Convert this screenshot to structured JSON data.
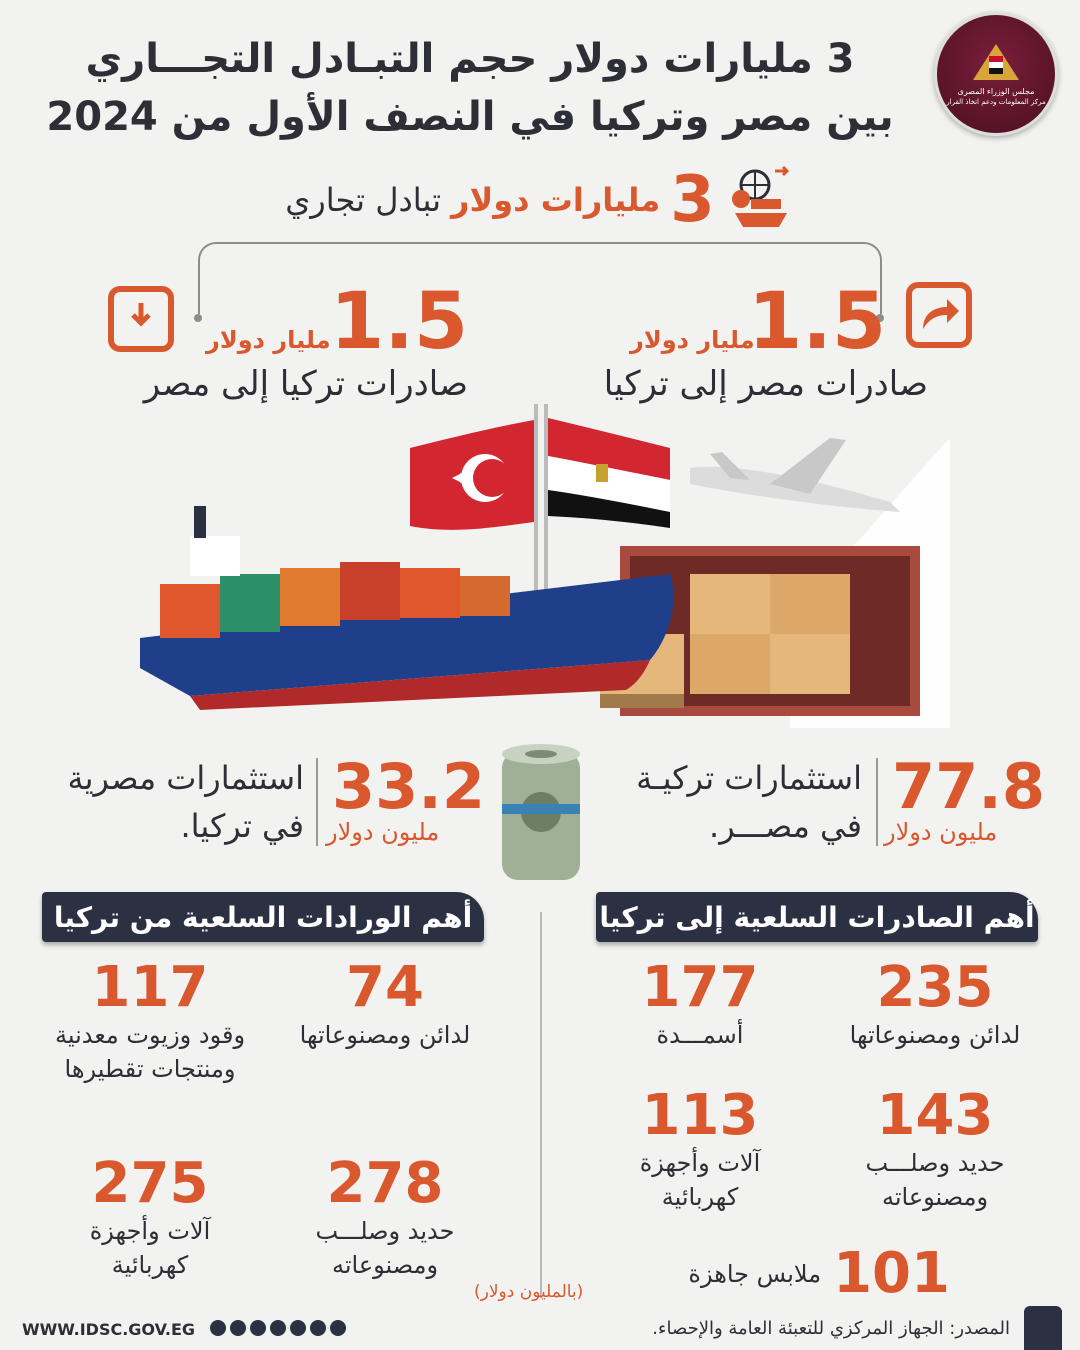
{
  "title": {
    "line1": "3 مليارات دولار حجم التبـادل التجـــاري",
    "line2": "بين مصر وتركيا في النصف الأول من 2024"
  },
  "logo": {
    "line1": "مجلس الوزراء المصرى",
    "line2": "مركز المعلومات ودعم اتخاذ القرار"
  },
  "trade": {
    "value": "3",
    "unit": "مليارات دولار",
    "label": "تبادل تجاري"
  },
  "egypt_exports": {
    "value": "1.5",
    "unit": "مليار دولار",
    "label": "صادرات مصر إلى تركيا"
  },
  "turkey_exports": {
    "value": "1.5",
    "unit": "مليار دولار",
    "label": "صادرات تركيا إلى مصر"
  },
  "turkish_investments": {
    "value": "77.8",
    "unit": "مليون دولار",
    "label1": "استثمارات تركيـة",
    "label2": "في مصـــر."
  },
  "egyptian_investments": {
    "value": "33.2",
    "unit": "مليون دولار",
    "label1": "استثمارات مصرية",
    "label2": "في تركيا."
  },
  "exports_section": {
    "title": "أهم الصادرات السلعية إلى تركيا",
    "items": [
      {
        "value": "235",
        "label": "لدائن ومصنوعاتها"
      },
      {
        "value": "177",
        "label": "أسمـــدة"
      },
      {
        "value": "143",
        "label": "حديد وصلـــب ومصنوعاته"
      },
      {
        "value": "113",
        "label": "آلات وأجهزة كهربائية"
      },
      {
        "value": "101",
        "label": "ملابس جاهزة"
      }
    ]
  },
  "imports_section": {
    "title": "أهم الورادات السلعية من تركيا",
    "items": [
      {
        "value": "74",
        "label": "لدائن ومصنوعاتها"
      },
      {
        "value": "117",
        "label": "وقود وزيوت معدنية ومنتجات تقطيرها"
      },
      {
        "value": "278",
        "label": "حديد وصلـــب ومصنوعاته"
      },
      {
        "value": "275",
        "label": "آلات وأجهزة كهربائية"
      }
    ]
  },
  "units_note": "(بالمليون دولار)",
  "footer": {
    "site": "WWW.IDSC.GOV.EG",
    "source": "المصدر: الجهاز المركزي للتعبئة العامة والإحصاء."
  },
  "colors": {
    "accent": "#d9582e",
    "dark": "#2b3042",
    "background": "#f2f2f0"
  }
}
